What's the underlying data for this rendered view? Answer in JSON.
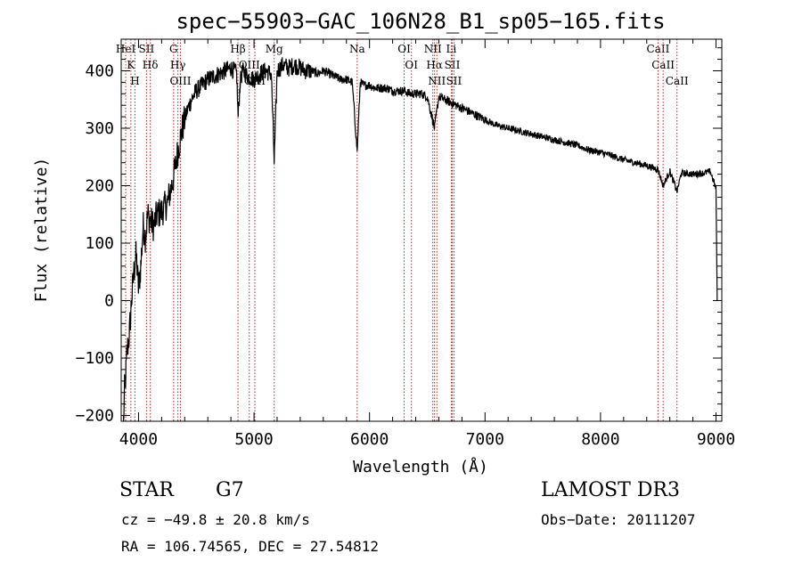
{
  "chart_data": {
    "type": "line",
    "title": "spec−55903−GAC_106N28_B1_sp05−165.fits",
    "xlabel": "Wavelength (Å)",
    "ylabel": "Flux (relative)",
    "xlim": [
      3850,
      9050
    ],
    "ylim": [
      -210,
      455
    ],
    "xticks": [
      4000,
      5000,
      6000,
      7000,
      8000,
      9000
    ],
    "yticks": [
      -200,
      -100,
      0,
      100,
      200,
      300,
      400
    ],
    "xtick_labels": [
      "4000",
      "5000",
      "6000",
      "7000",
      "8000",
      "9000"
    ],
    "ytick_labels": [
      "−200",
      "−100",
      "0",
      "100",
      "200",
      "300",
      "400"
    ],
    "series": [
      {
        "name": "flux",
        "x": [
          3870,
          3880,
          3890,
          3900,
          3920,
          3940,
          3960,
          3980,
          4000,
          4020,
          4040,
          4060,
          4080,
          4100,
          4130,
          4160,
          4200,
          4250,
          4300,
          4340,
          4380,
          4420,
          4460,
          4500,
          4550,
          4600,
          4650,
          4700,
          4750,
          4800,
          4850,
          4862,
          4880,
          4900,
          4950,
          5000,
          5050,
          5100,
          5150,
          5175,
          5200,
          5250,
          5300,
          5350,
          5400,
          5450,
          5500,
          5550,
          5600,
          5650,
          5700,
          5750,
          5800,
          5850,
          5893,
          5920,
          5950,
          6000,
          6050,
          6100,
          6150,
          6200,
          6250,
          6300,
          6350,
          6400,
          6450,
          6500,
          6563,
          6600,
          6650,
          6700,
          6750,
          6800,
          6850,
          6900,
          7000,
          7100,
          7200,
          7300,
          7400,
          7500,
          7600,
          7700,
          7800,
          7900,
          8000,
          8100,
          8200,
          8300,
          8400,
          8498,
          8542,
          8600,
          8662,
          8700,
          8800,
          8900,
          8950,
          9000,
          9010
        ],
        "values": [
          -210,
          -150,
          -130,
          -90,
          -60,
          0,
          50,
          80,
          20,
          60,
          130,
          110,
          150,
          140,
          130,
          150,
          155,
          170,
          210,
          260,
          300,
          330,
          350,
          365,
          375,
          385,
          390,
          395,
          400,
          405,
          395,
          320,
          380,
          400,
          390,
          385,
          395,
          400,
          395,
          240,
          400,
          410,
          405,
          410,
          405,
          400,
          400,
          395,
          400,
          395,
          390,
          385,
          385,
          380,
          260,
          380,
          375,
          375,
          370,
          370,
          370,
          365,
          365,
          365,
          360,
          360,
          360,
          355,
          300,
          355,
          350,
          345,
          340,
          335,
          330,
          325,
          315,
          305,
          300,
          295,
          290,
          285,
          280,
          275,
          270,
          262,
          258,
          252,
          245,
          240,
          235,
          228,
          200,
          225,
          190,
          222,
          220,
          222,
          225,
          195,
          0
        ]
      }
    ],
    "spectral_lines": [
      {
        "label": "K",
        "wavelength": 3934
      },
      {
        "label": "H",
        "wavelength": 3969
      },
      {
        "label": "HeI",
        "wavelength": 3889
      },
      {
        "label": "SII",
        "wavelength": 4069
      },
      {
        "label": "Hδ",
        "wavelength": 4102
      },
      {
        "label": "G",
        "wavelength": 4304
      },
      {
        "label": "Hγ",
        "wavelength": 4341
      },
      {
        "label": "OIII",
        "wavelength": 4363
      },
      {
        "label": "Hβ",
        "wavelength": 4861
      },
      {
        "label": "OIII",
        "wavelength": 4959
      },
      {
        "label": "OIII",
        "wavelength": 5007
      },
      {
        "label": "Mg",
        "wavelength": 5175
      },
      {
        "label": "Na",
        "wavelength": 5893
      },
      {
        "label": "OI",
        "wavelength": 6300
      },
      {
        "label": "OI",
        "wavelength": 6363
      },
      {
        "label": "NII",
        "wavelength": 6548
      },
      {
        "label": "Hα",
        "wavelength": 6563
      },
      {
        "label": "NII",
        "wavelength": 6583
      },
      {
        "label": "Li",
        "wavelength": 6708
      },
      {
        "label": "SII",
        "wavelength": 6716
      },
      {
        "label": "SII",
        "wavelength": 6731
      },
      {
        "label": "CaII",
        "wavelength": 8498
      },
      {
        "label": "CaII",
        "wavelength": 8542
      },
      {
        "label": "CaII",
        "wavelength": 8662
      }
    ],
    "line_color": "#000000",
    "marker_color": "#cc2222"
  },
  "info": {
    "object_type": "STAR",
    "subclass": "G7",
    "survey": "LAMOST DR3",
    "redshift": "cz = −49.8 ± 20.8 km/s",
    "obs_date": "Obs−Date: 20111207",
    "coords": "RA = 106.74565, DEC =  27.54812"
  }
}
